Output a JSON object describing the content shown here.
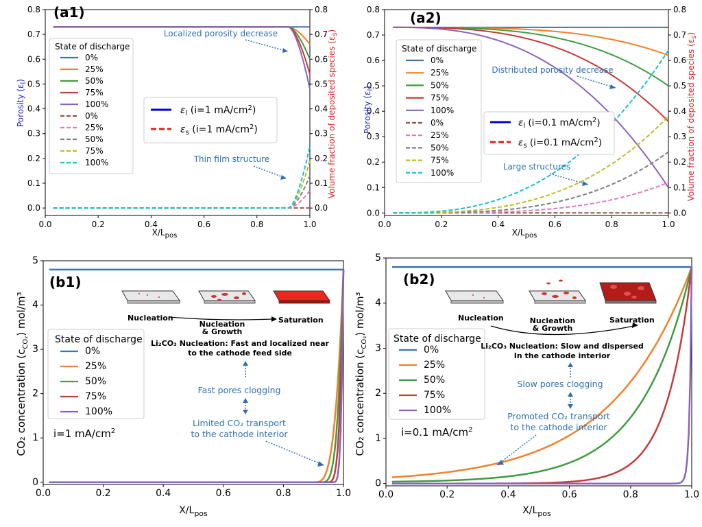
{
  "chart_data": [
    {
      "id": "a1",
      "type": "line",
      "panel_label": "(a1)",
      "xlabel": "X/L",
      "xlabel_sub": "pos",
      "ylabel_left": "Porosity (ε",
      "ylabel_left_sub": "l",
      "ylabel_left_end": ")",
      "ylabel_right": "Volume fraction of deposited species (ε",
      "ylabel_right_sub": "s",
      "ylabel_right_end": ")",
      "xlim": [
        0,
        1.0
      ],
      "ylim_left": [
        -0.03,
        0.8
      ],
      "ylim_right": [
        -0.03,
        0.8
      ],
      "xticks": [
        "0.0",
        "0.2",
        "0.4",
        "0.6",
        "0.8",
        "1.0"
      ],
      "yticks_left": [
        "0.0",
        "0.1",
        "0.2",
        "0.3",
        "0.4",
        "0.5",
        "0.6",
        "0.7",
        "0.8"
      ],
      "yticks_right": [
        "0.0",
        "0.1",
        "0.2",
        "0.3",
        "0.4",
        "0.5",
        "0.6",
        "0.7",
        "0.8"
      ],
      "legend_title": "State of discharge",
      "legend_entries": [
        "0%",
        "25%",
        "50%",
        "75%",
        "100%",
        "0%",
        "25%",
        "50%",
        "75%",
        "100%"
      ],
      "style_legend": [
        "ε",
        "l",
        " (i=1 mA/cm",
        "2",
        ")",
        "ε",
        "s",
        " (i=1 mA/cm",
        "2",
        ")"
      ],
      "annotations": [
        "Localized porosity decrease",
        "Thin film structure"
      ],
      "porosity_series": [
        {
          "name": "0%",
          "x0": 0.92,
          "end": 0.73
        },
        {
          "name": "25%",
          "x0": 0.92,
          "end": 0.66
        },
        {
          "name": "50%",
          "x0": 0.92,
          "end": 0.6
        },
        {
          "name": "75%",
          "x0": 0.92,
          "end": 0.54
        },
        {
          "name": "100%",
          "x0": 0.92,
          "end": 0.48
        }
      ],
      "deposit_series": [
        {
          "name": "0%",
          "x0": 0.92,
          "end": 0.0
        },
        {
          "name": "25%",
          "x0": 0.92,
          "end": 0.07
        },
        {
          "name": "50%",
          "x0": 0.92,
          "end": 0.13
        },
        {
          "name": "75%",
          "x0": 0.92,
          "end": 0.19
        },
        {
          "name": "100%",
          "x0": 0.92,
          "end": 0.25
        }
      ]
    },
    {
      "id": "a2",
      "type": "line",
      "panel_label": "(a2)",
      "xlabel": "X/L",
      "xlabel_sub": "pos",
      "ylabel_left": "Porosity (ε",
      "ylabel_left_sub": "l",
      "ylabel_left_end": ")",
      "ylabel_right": "Volume fraction of deposited species (ε",
      "ylabel_right_sub": "s",
      "ylabel_right_end": ")",
      "xlim": [
        0,
        1.0
      ],
      "ylim_left": [
        -0.01,
        0.8
      ],
      "ylim_right": [
        -0.01,
        0.8
      ],
      "xticks": [
        "0.0",
        "0.2",
        "0.4",
        "0.6",
        "0.8",
        "1.0"
      ],
      "yticks_left": [
        "0.0",
        "0.1",
        "0.2",
        "0.3",
        "0.4",
        "0.5",
        "0.6",
        "0.7",
        "0.8"
      ],
      "yticks_right": [
        "0.0",
        "0.1",
        "0.2",
        "0.3",
        "0.4",
        "0.5",
        "0.6",
        "0.7",
        "0.8"
      ],
      "legend_title": "State of discharge",
      "legend_entries": [
        "0%",
        "25%",
        "50%",
        "75%",
        "100%",
        "0%",
        "25%",
        "50%",
        "75%",
        "100%"
      ],
      "style_legend": [
        "ε",
        "l",
        " (i=0.1 mA/cm",
        "2",
        ")",
        "ε",
        "s",
        " (i=0.1 mA/cm",
        "2",
        ")"
      ],
      "annotations": [
        "Distributed porosity decrease",
        "Large structures"
      ],
      "porosity_series": [
        {
          "name": "0%",
          "x0": 0.0,
          "end": 0.73
        },
        {
          "name": "25%",
          "x0": 0.3,
          "end": 0.62
        },
        {
          "name": "50%",
          "x0": 0.3,
          "end": 0.5
        },
        {
          "name": "75%",
          "x0": 0.3,
          "end": 0.36
        },
        {
          "name": "100%",
          "x0": 0.3,
          "end": 0.1
        }
      ],
      "deposit_series": [
        {
          "name": "0%",
          "x0": 0.3,
          "end": 0.0
        },
        {
          "name": "25%",
          "x0": 0.3,
          "end": 0.12
        },
        {
          "name": "50%",
          "x0": 0.3,
          "end": 0.24
        },
        {
          "name": "75%",
          "x0": 0.3,
          "end": 0.38
        },
        {
          "name": "100%",
          "x0": 0.3,
          "end": 0.64
        }
      ]
    },
    {
      "id": "b1",
      "type": "line",
      "panel_label": "(b1)",
      "xlabel": "X/L",
      "xlabel_sub": "pos",
      "ylabel": "CO₂ concentration (c",
      "ylabel_sub": "CO₂",
      "ylabel_end": ") mol/m³",
      "xlim": [
        0,
        1.0
      ],
      "ylim": [
        -0.05,
        5
      ],
      "xticks": [
        "0.0",
        "0.2",
        "0.4",
        "0.6",
        "0.8",
        "1.0"
      ],
      "yticks": [
        "0",
        "1",
        "2",
        "3",
        "4",
        "5"
      ],
      "legend_title": "State of discharge",
      "legend_entries": [
        "0%",
        "25%",
        "50%",
        "75%",
        "100%"
      ],
      "current_label": "i=1 mA/cm",
      "current_sup": "2",
      "process_labels": [
        "Nucleation",
        "Nucleation",
        "& Growth",
        "Saturation"
      ],
      "nucleation_text": [
        "Li₂CO₃ Nucleation: Fast and localized near",
        "to the cathode feed side"
      ],
      "annotations": [
        "Fast pores clogging",
        "Limited CO₂ transport",
        "to the cathode interior"
      ],
      "series": [
        {
          "name": "0%",
          "value": 4.8
        },
        {
          "name": "25%",
          "x0": 0.9,
          "k": 55
        },
        {
          "name": "50%",
          "x0": 0.92,
          "k": 70
        },
        {
          "name": "75%",
          "x0": 0.94,
          "k": 90
        },
        {
          "name": "100%",
          "x0": 0.96,
          "k": 120
        }
      ]
    },
    {
      "id": "b2",
      "type": "line",
      "panel_label": "(b2)",
      "xlabel": "X/L",
      "xlabel_sub": "pos",
      "ylabel": "CO₂ concentration (c",
      "ylabel_sub": "CO₂",
      "ylabel_end": ") mol/m³",
      "xlim": [
        0,
        1.0
      ],
      "ylim": [
        -0.05,
        5
      ],
      "xticks": [
        "0.0",
        "0.2",
        "0.4",
        "0.6",
        "0.8",
        "1.0"
      ],
      "yticks": [
        "0",
        "1",
        "2",
        "3",
        "4",
        "5"
      ],
      "legend_title": "State of discharge",
      "legend_entries": [
        "0%",
        "25%",
        "50%",
        "75%",
        "100%"
      ],
      "current_label": "i=0.1 mA/cm",
      "current_sup": "2",
      "process_labels": [
        "Nucleation",
        "Nucleation",
        "& Growth",
        "Saturation"
      ],
      "nucleation_text": [
        "Li₂CO₃ Nucleation: Slow and dispersed",
        "In the cathode interior"
      ],
      "annotations": [
        "Slow pores clogging",
        "Promoted CO₂ transport",
        "to the cathode interior"
      ],
      "series": [
        {
          "name": "0%",
          "value": 4.8
        },
        {
          "name": "25%",
          "base": 0.13,
          "k": 3.8
        },
        {
          "name": "50%",
          "base": 0.04,
          "k": 6.0
        },
        {
          "name": "75%",
          "base": 0.0,
          "k": 12.0
        },
        {
          "name": "100%",
          "base": 0.0,
          "k": 150.0
        }
      ]
    }
  ],
  "colors": {
    "c0": "#3a75b0",
    "c25": "#f0802b",
    "c50": "#3f9b3f",
    "c75": "#c63a37",
    "c100": "#8a63b9",
    "d0": "#8c564b",
    "d25": "#e377c2",
    "d50": "#7f7f7f",
    "d75": "#bcbd22",
    "d100": "#17becf",
    "left_axis": "#2222cc",
    "right_axis": "#d62728",
    "annotation": "#2f6fb0",
    "legend_line_blue": "#0000dd",
    "legend_line_red": "#e0201b"
  }
}
